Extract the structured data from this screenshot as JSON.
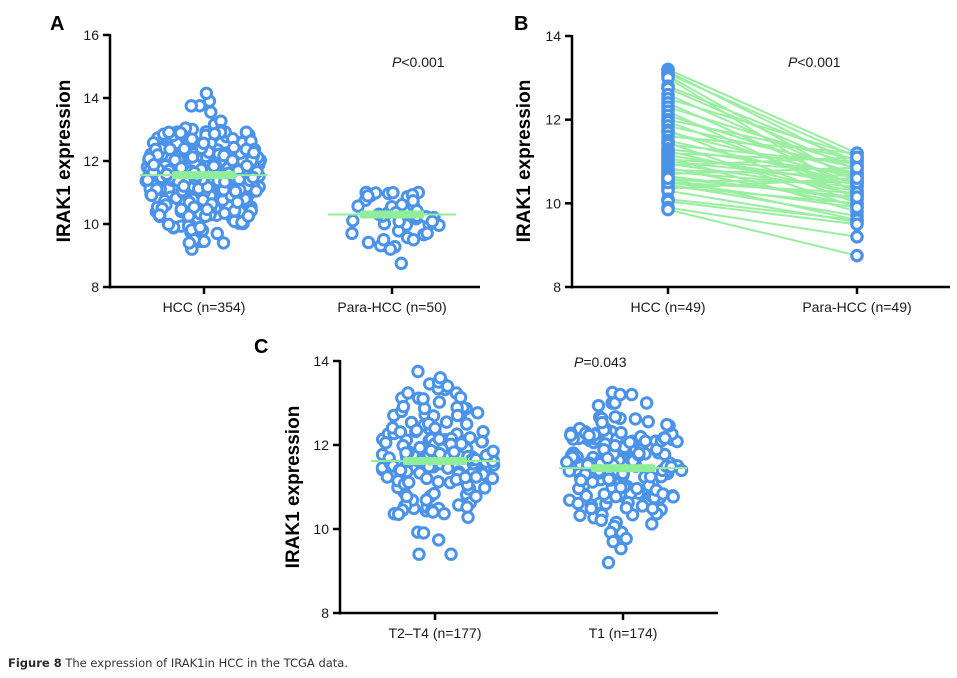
{
  "caption": {
    "label": "Figure 8",
    "text": " The expression of IRAK1in HCC in the TCGA data."
  },
  "colors": {
    "marker": "#4a93e8",
    "mean_line": "#90ee98",
    "pair_line": "#9aeea0",
    "axis": "#000000"
  },
  "chart_data": [
    {
      "id": "A",
      "type": "scatter",
      "subtype": "dot-plot with mean",
      "panel_label": "A",
      "ylabel": "IRAK1 expression",
      "ylim": [
        8,
        16
      ],
      "yticks": [
        8,
        10,
        12,
        14,
        16
      ],
      "categories": [
        "HCC (n=354)",
        "Para-HCC (n=50)"
      ],
      "annotation": {
        "italic": "P",
        "rest": "<0.001"
      },
      "series": [
        {
          "name": "HCC",
          "n": 354,
          "mean": 11.55,
          "min": 9.2,
          "max": 14.15,
          "outliers_high": [
            14.15,
            13.75,
            13.55
          ],
          "outliers_low": [
            9.2,
            9.4,
            9.4,
            9.7
          ]
        },
        {
          "name": "Para-HCC",
          "n": 50,
          "mean": 10.3,
          "min": 8.75,
          "max": 11.25,
          "outliers_high": [],
          "outliers_low": [
            8.75,
            9.2,
            9.5,
            9.5
          ]
        }
      ]
    },
    {
      "id": "B",
      "type": "line",
      "subtype": "paired before-after",
      "panel_label": "B",
      "ylabel": "IRAK1 expression",
      "ylim": [
        8,
        14
      ],
      "yticks": [
        8,
        10,
        12,
        14
      ],
      "categories": [
        "HCC (n=49)",
        "Para-HCC (n=49)"
      ],
      "annotation": {
        "italic": "P",
        "rest": "<0.001"
      },
      "pairs": [
        [
          13.2,
          11.2
        ],
        [
          13.15,
          10.9
        ],
        [
          13.1,
          11.1
        ],
        [
          13.05,
          10.5
        ],
        [
          13.0,
          10.2
        ],
        [
          12.8,
          11.0
        ],
        [
          12.75,
          10.8
        ],
        [
          12.6,
          10.6
        ],
        [
          12.5,
          11.15
        ],
        [
          12.4,
          10.4
        ],
        [
          12.3,
          10.9
        ],
        [
          12.2,
          10.1
        ],
        [
          12.1,
          10.7
        ],
        [
          12.0,
          11.05
        ],
        [
          11.95,
          10.3
        ],
        [
          11.85,
          10.85
        ],
        [
          11.75,
          10.0
        ],
        [
          11.7,
          10.6
        ],
        [
          11.6,
          11.2
        ],
        [
          11.5,
          10.5
        ],
        [
          11.45,
          9.9
        ],
        [
          11.4,
          10.95
        ],
        [
          11.3,
          10.7
        ],
        [
          11.25,
          10.2
        ],
        [
          11.2,
          11.0
        ],
        [
          11.15,
          10.45
        ],
        [
          11.1,
          9.8
        ],
        [
          11.05,
          10.75
        ],
        [
          11.0,
          10.55
        ],
        [
          10.95,
          10.3
        ],
        [
          10.9,
          11.1
        ],
        [
          10.85,
          9.95
        ],
        [
          10.8,
          10.65
        ],
        [
          10.75,
          10.4
        ],
        [
          10.7,
          10.85
        ],
        [
          10.65,
          10.1
        ],
        [
          10.6,
          9.6
        ],
        [
          10.55,
          10.5
        ],
        [
          10.5,
          10.25
        ],
        [
          10.45,
          9.7
        ],
        [
          10.4,
          10.0
        ],
        [
          10.35,
          10.6
        ],
        [
          10.3,
          9.55
        ],
        [
          10.5,
          9.9
        ],
        [
          10.6,
          10.15
        ],
        [
          10.1,
          9.6
        ],
        [
          10.05,
          9.5
        ],
        [
          9.9,
          9.2
        ],
        [
          9.85,
          8.75
        ]
      ]
    },
    {
      "id": "C",
      "type": "scatter",
      "subtype": "dot-plot with mean",
      "panel_label": "C",
      "ylabel": "IRAK1 expression",
      "ylim": [
        8,
        14
      ],
      "yticks": [
        8,
        10,
        12,
        14
      ],
      "categories": [
        "T2–T4 (n=177)",
        "T1 (n=174)"
      ],
      "annotation": {
        "italic": "P",
        "rest": "=0.043"
      },
      "series": [
        {
          "name": "T2–T4",
          "n": 177,
          "mean": 11.62,
          "min": 9.4,
          "max": 13.75,
          "outliers_high": [
            13.75,
            13.6,
            13.4
          ],
          "outliers_low": [
            9.4,
            9.4
          ]
        },
        {
          "name": "T1",
          "n": 174,
          "mean": 11.45,
          "min": 9.2,
          "max": 13.25,
          "outliers_high": [
            13.25,
            13.2,
            13.2
          ],
          "outliers_low": [
            9.2,
            9.7
          ]
        }
      ]
    }
  ]
}
